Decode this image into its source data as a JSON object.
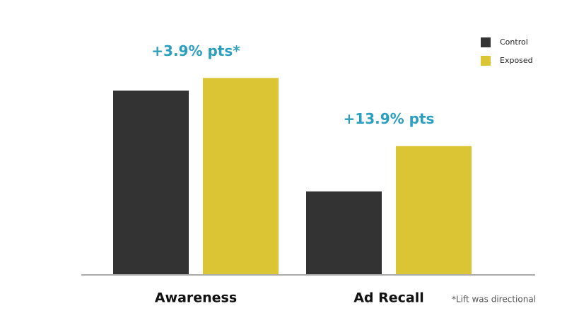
{
  "chart_data": {
    "type": "bar",
    "categories": [
      "Awareness",
      "Ad Recall"
    ],
    "series": [
      {
        "name": "Control",
        "color": "#333333",
        "values": [
          56.5,
          25.6
        ]
      },
      {
        "name": "Exposed",
        "color": "#dcc534",
        "values": [
          60.4,
          39.5
        ]
      }
    ],
    "annotations": [
      "+3.9% pts*",
      "+13.9% pts"
    ],
    "annotation_color": "#2a9fc0",
    "footnote": "*Lift was directional",
    "ylim": [
      0,
      70
    ],
    "legend": "upper right"
  }
}
